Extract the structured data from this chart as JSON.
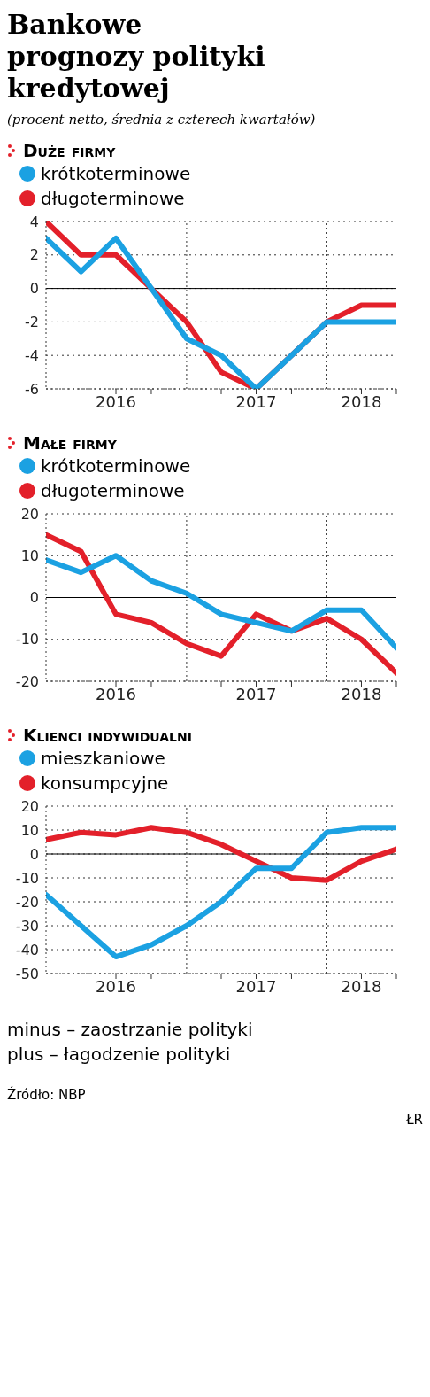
{
  "chart_data": [
    {
      "type": "line",
      "title": "Bankowe prognozy polityki kredytowej",
      "subtitle": "(procent netto, średnia z czterech kwartałów)",
      "legend_title": "Duże firmy",
      "x": [
        "2016-01",
        "2016-04",
        "2016-07",
        "2016-10",
        "2017-01",
        "2017-04",
        "2017-07",
        "2017-10",
        "2018-01",
        "2018-04",
        "2018-07"
      ],
      "xlim": [
        "2016-01",
        "2018-07"
      ],
      "xticks": [
        {
          "value": "2016-04",
          "label": null
        },
        {
          "value": "2016-07",
          "label": "2016"
        },
        {
          "value": "2016-10",
          "label": null
        },
        {
          "value": "2017-04",
          "label": null
        },
        {
          "value": "2017-07",
          "label": "2017"
        },
        {
          "value": "2017-10",
          "label": null
        },
        {
          "value": "2018-04",
          "label": "2018"
        },
        {
          "value": "2018-07",
          "label": null
        }
      ],
      "ylim": [
        -6,
        4
      ],
      "yticks": [
        -6,
        -4,
        -2,
        0,
        2,
        4
      ],
      "grid": "y",
      "legend": "top left",
      "marker": "none",
      "line_style": "solid",
      "ref_lines": [
        {
          "axis": "y",
          "value": 0,
          "color": "#000000",
          "line_style": "solid"
        },
        {
          "axis": "x",
          "value": "2017-01",
          "color": "#333333",
          "line_style": "dotted"
        },
        {
          "axis": "x",
          "value": "2018-01",
          "color": "#333333",
          "line_style": "dotted"
        }
      ],
      "series": [
        {
          "name": "długoterminowe",
          "color": "#e3202a",
          "values": [
            4,
            2,
            2,
            0,
            -2,
            -5,
            -6,
            null,
            -2,
            -1,
            -1
          ]
        },
        {
          "name": "krótkoterminowe",
          "color": "#1ba1e2",
          "values": [
            3,
            1,
            3,
            0,
            -3,
            -4,
            -6,
            -4,
            -2,
            -2,
            -2
          ]
        }
      ]
    },
    {
      "type": "line",
      "legend_title": "Małe firmy",
      "x": [
        "2016-01",
        "2016-04",
        "2016-07",
        "2016-10",
        "2017-01",
        "2017-04",
        "2017-07",
        "2017-10",
        "2018-01",
        "2018-04",
        "2018-07"
      ],
      "xlim": [
        "2016-01",
        "2018-07"
      ],
      "xticks": [
        {
          "value": "2016-04",
          "label": null
        },
        {
          "value": "2016-07",
          "label": "2016"
        },
        {
          "value": "2016-10",
          "label": null
        },
        {
          "value": "2017-04",
          "label": null
        },
        {
          "value": "2017-07",
          "label": "2017"
        },
        {
          "value": "2017-10",
          "label": null
        },
        {
          "value": "2018-04",
          "label": "2018"
        },
        {
          "value": "2018-07",
          "label": null
        }
      ],
      "ylim": [
        -20,
        20
      ],
      "yticks": [
        -20,
        -10,
        0,
        10,
        20
      ],
      "grid": "y",
      "legend": "top left",
      "marker": "none",
      "line_style": "solid",
      "ref_lines": [
        {
          "axis": "y",
          "value": 0,
          "color": "#000000",
          "line_style": "solid"
        },
        {
          "axis": "x",
          "value": "2017-01",
          "color": "#333333",
          "line_style": "dotted"
        },
        {
          "axis": "x",
          "value": "2018-01",
          "color": "#333333",
          "line_style": "dotted"
        }
      ],
      "series": [
        {
          "name": "długoterminowe",
          "color": "#e3202a",
          "values": [
            15,
            11,
            -4,
            -6,
            -11,
            -14,
            -4,
            -8,
            -5,
            -10,
            -18
          ]
        },
        {
          "name": "krótkoterminowe",
          "color": "#1ba1e2",
          "values": [
            9,
            6,
            10,
            4,
            1,
            -4,
            -6,
            -8,
            -3,
            -3,
            -12
          ]
        }
      ]
    },
    {
      "type": "line",
      "legend_title": "Klienci indywidualni",
      "x": [
        "2016-01",
        "2016-04",
        "2016-07",
        "2016-10",
        "2017-01",
        "2017-04",
        "2017-07",
        "2017-10",
        "2018-01",
        "2018-04",
        "2018-07"
      ],
      "xlim": [
        "2016-01",
        "2018-07"
      ],
      "xticks": [
        {
          "value": "2016-04",
          "label": null
        },
        {
          "value": "2016-07",
          "label": "2016"
        },
        {
          "value": "2016-10",
          "label": null
        },
        {
          "value": "2017-04",
          "label": null
        },
        {
          "value": "2017-07",
          "label": "2017"
        },
        {
          "value": "2017-10",
          "label": null
        },
        {
          "value": "2018-04",
          "label": "2018"
        },
        {
          "value": "2018-07",
          "label": null
        }
      ],
      "ylim": [
        -50,
        20
      ],
      "yticks": [
        -50,
        -40,
        -30,
        -20,
        -10,
        0,
        10,
        20
      ],
      "grid": "y",
      "legend": "top left",
      "marker": "none",
      "line_style": "solid",
      "ref_lines": [
        {
          "axis": "y",
          "value": 0,
          "color": "#000000",
          "line_style": "solid"
        },
        {
          "axis": "x",
          "value": "2017-01",
          "color": "#333333",
          "line_style": "dotted"
        },
        {
          "axis": "x",
          "value": "2018-01",
          "color": "#333333",
          "line_style": "dotted"
        }
      ],
      "annotations": [
        "minus – zaostrzanie polityki",
        "plus – łagodzenie polityki",
        "Źródło: NBP",
        "ŁR"
      ],
      "series": [
        {
          "name": "konsumpcyjne",
          "color": "#e3202a",
          "values": [
            6,
            9,
            8,
            11,
            9,
            4,
            -3,
            -10,
            -11,
            -3,
            2
          ]
        },
        {
          "name": "mieszkaniowe",
          "color": "#1ba1e2",
          "values": [
            -17,
            -30,
            -43,
            -38,
            -30,
            -20,
            -6,
            -6,
            9,
            11,
            11
          ]
        }
      ]
    }
  ]
}
